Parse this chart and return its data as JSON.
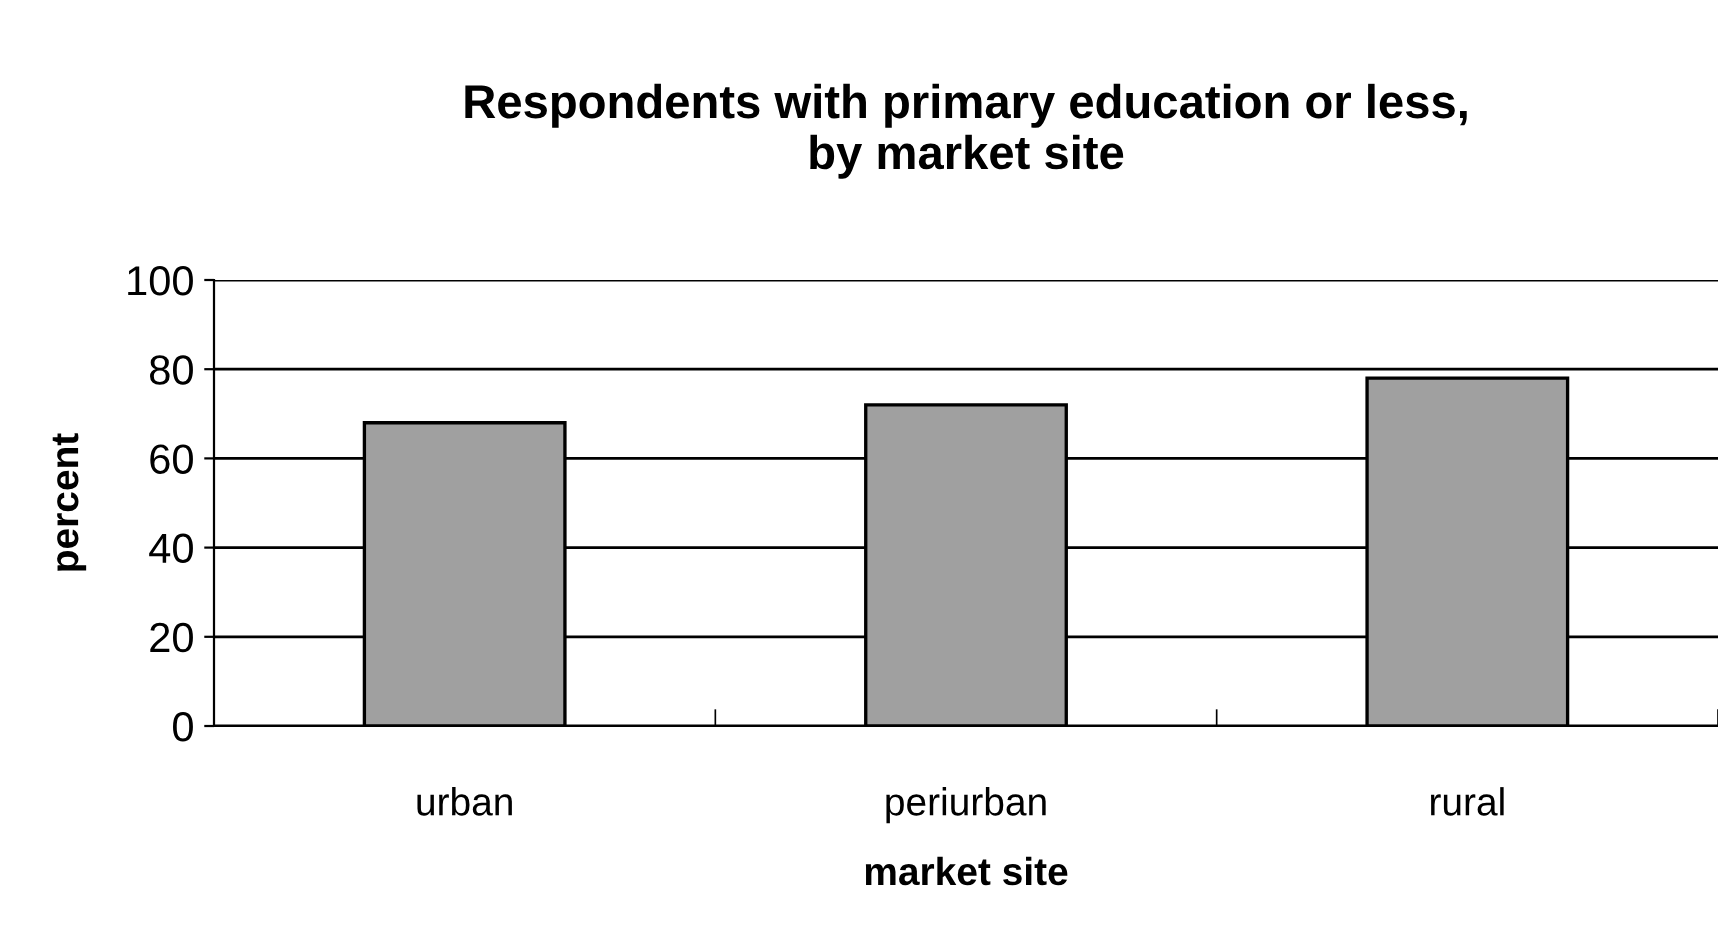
{
  "chart_data": {
    "type": "bar",
    "title": "Respondents with primary education or less,\nby market site",
    "xlabel": "market site",
    "ylabel": "percent",
    "categories": [
      "urban",
      "periurban",
      "rural"
    ],
    "values": [
      68,
      72,
      78
    ],
    "color": "#a0a0a0",
    "ylim": [
      0,
      100
    ],
    "yticks": [
      0,
      20,
      40,
      60,
      80,
      100
    ],
    "grid": "y"
  }
}
